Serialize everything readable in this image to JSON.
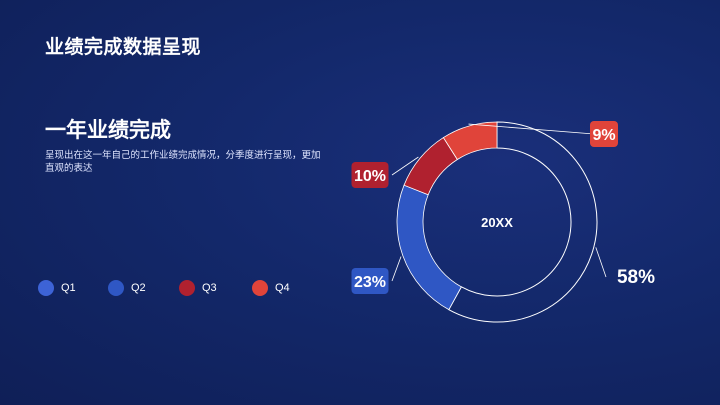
{
  "page": {
    "title": "业绩完成数据呈现",
    "section_title": "一年业绩完成",
    "description": "呈现出在这一年自己的工作业绩完成情况，分季度进行呈现，更加直观的表达"
  },
  "chart_data": {
    "type": "pie",
    "style": "donut",
    "center_label": "20XX",
    "categories": [
      "Q1",
      "Q2",
      "Q3",
      "Q4"
    ],
    "values": [
      58,
      23,
      10,
      9
    ],
    "value_labels": [
      "58%",
      "23%",
      "10%",
      "9%"
    ],
    "colors": [
      "#3d63d6",
      "#2f57c4",
      "#b0212f",
      "#e0443a"
    ],
    "legend_position": "bottom-left"
  },
  "colors": {
    "background": "#13286a",
    "q1_ring_outline": "#ffffff"
  }
}
